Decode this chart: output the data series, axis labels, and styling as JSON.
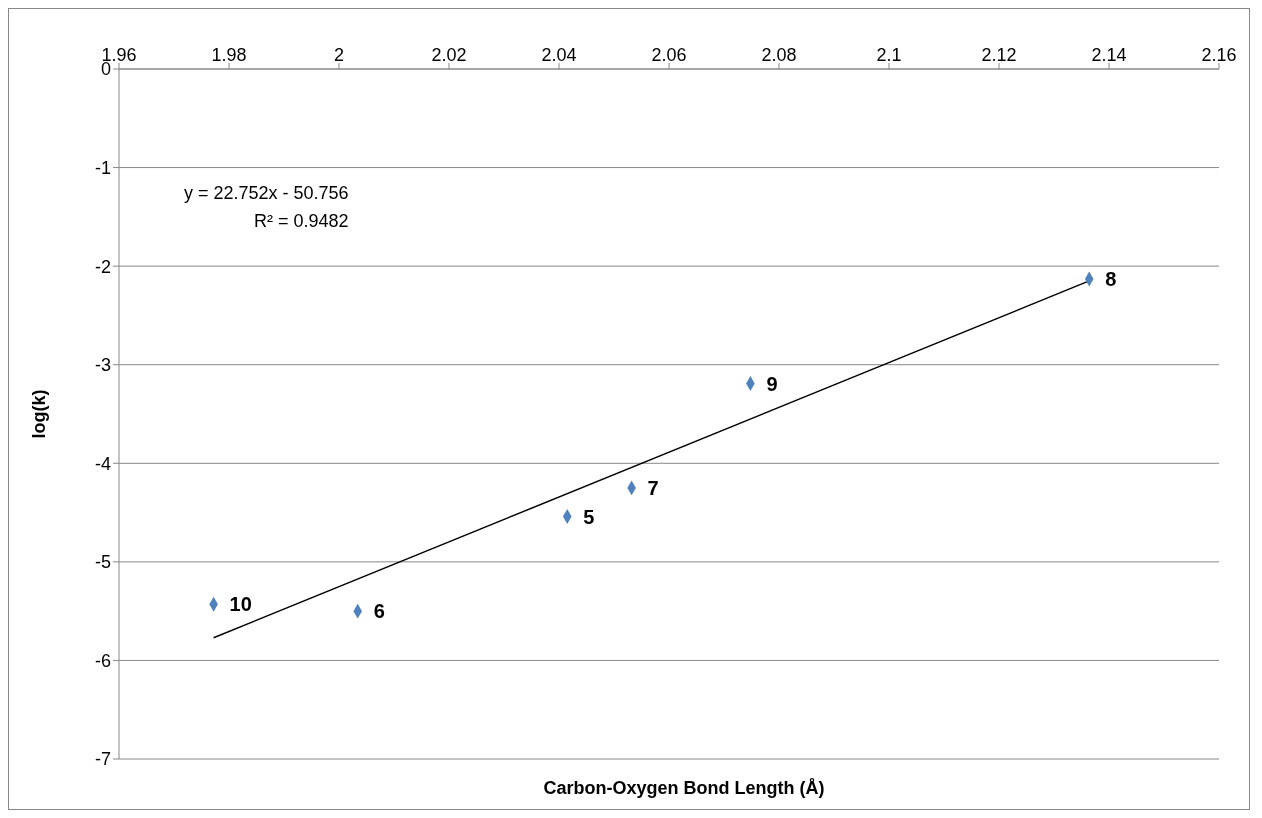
{
  "chart_data": {
    "type": "scatter",
    "xlabel": "Carbon-Oxygen Bond Length (Å)",
    "ylabel": "log(k)",
    "xlim": [
      1.96,
      2.16
    ],
    "xticks": [
      1.96,
      1.98,
      2,
      2.02,
      2.04,
      2.06,
      2.08,
      2.1,
      2.12,
      2.14,
      2.16
    ],
    "ylim": [
      -7,
      0
    ],
    "yticks": [
      -7,
      -6,
      -5,
      -4,
      -3,
      -2,
      -1,
      0
    ],
    "grid": "y",
    "legend": false,
    "marker": "diamond",
    "series": [
      {
        "color": "#4f81bd",
        "x": [
          1.9772,
          2.0034,
          2.0415,
          2.0532,
          2.0748,
          2.1364
        ],
        "values": [
          -5.43,
          -5.5,
          -4.54,
          -4.25,
          -3.19,
          -2.13
        ]
      },
      {
        "type": "line",
        "color": "#000000",
        "marker": "none",
        "line_style": "solid",
        "x": [
          1.9772,
          2.1364
        ],
        "values": [
          -5.77,
          -2.15
        ]
      }
    ],
    "annotations": [
      "y = 22.752x - 50.756",
      "R² = 0.9482",
      {
        "text": "10",
        "x": 1.9772,
        "y": -5.43
      },
      {
        "text": "6",
        "x": 2.0034,
        "y": -5.5
      },
      {
        "text": "5",
        "x": 2.0415,
        "y": -4.54
      },
      {
        "text": "7",
        "x": 2.0532,
        "y": -4.25
      },
      {
        "text": "9",
        "x": 2.0748,
        "y": -3.19
      },
      {
        "text": "8",
        "x": 2.1364,
        "y": -2.13
      }
    ]
  }
}
